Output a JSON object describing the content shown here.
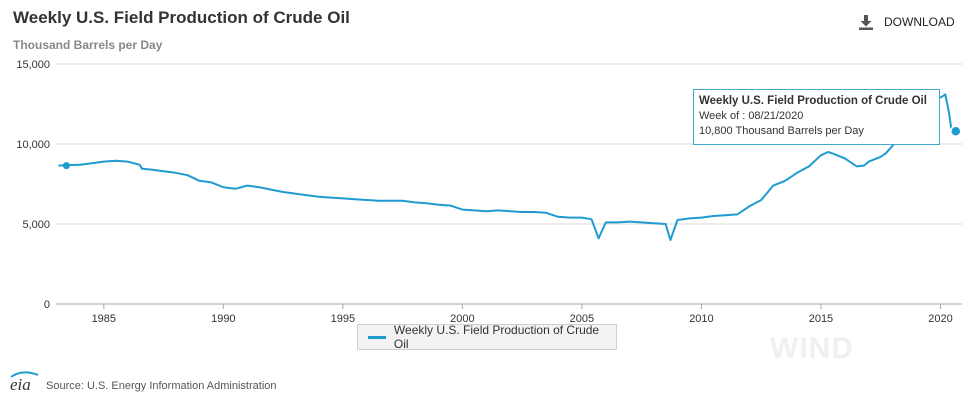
{
  "header": {
    "title": "Weekly U.S. Field Production of Crude Oil",
    "subtitle": "Thousand Barrels per Day",
    "download_label": "DOWNLOAD",
    "download_icon": "download-icon"
  },
  "source": {
    "logo_text": "eia",
    "text": "Source: U.S. Energy Information Administration"
  },
  "watermark": "WIND",
  "tooltip": {
    "title": "Weekly U.S. Field Production of Crude Oil",
    "week_line": "Week of : 08/21/2020",
    "value_line": "10,800 Thousand Barrels per Day"
  },
  "legend": {
    "label": "Weekly U.S. Field Production of Crude Oil"
  },
  "colors": {
    "series": "#1f9bd1",
    "grid": "#d8d8d8",
    "tooltip_border": "#3fa9c9"
  },
  "chart_data": {
    "type": "line",
    "title": "Weekly U.S. Field Production of Crude Oil",
    "ylabel": "Thousand Barrels per Day",
    "ylim": [
      0,
      15000
    ],
    "yticks": [
      0,
      5000,
      10000,
      15000
    ],
    "ytick_labels": [
      "0",
      "5,000",
      "10,000",
      "15,000"
    ],
    "xlim": [
      1983.0,
      2020.9
    ],
    "xticks": [
      1985,
      1990,
      1995,
      2000,
      2005,
      2010,
      2015,
      2020
    ],
    "xtick_labels": [
      "1985",
      "1990",
      "1995",
      "2000",
      "2005",
      "2010",
      "2015",
      "2020"
    ],
    "grid": true,
    "legend_position": "bottom-center",
    "series": [
      {
        "name": "Weekly U.S. Field Production of Crude Oil",
        "x": [
          1983.1,
          1983.5,
          1984.0,
          1984.5,
          1985.0,
          1985.5,
          1986.0,
          1986.5,
          1986.6,
          1987.0,
          1987.5,
          1988.0,
          1988.5,
          1989.0,
          1989.5,
          1990.0,
          1990.5,
          1991.0,
          1991.5,
          1992.0,
          1992.5,
          1993.0,
          1993.5,
          1994.0,
          1994.5,
          1995.0,
          1995.5,
          1996.0,
          1996.5,
          1997.0,
          1997.5,
          1998.0,
          1998.5,
          1999.0,
          1999.5,
          2000.0,
          2000.5,
          2001.0,
          2001.5,
          2002.0,
          2002.5,
          2003.0,
          2003.5,
          2004.0,
          2004.5,
          2005.0,
          2005.4,
          2005.7,
          2006.0,
          2006.5,
          2007.0,
          2007.5,
          2008.0,
          2008.5,
          2008.7,
          2009.0,
          2009.5,
          2010.0,
          2010.5,
          2011.0,
          2011.5,
          2012.0,
          2012.5,
          2013.0,
          2013.5,
          2014.0,
          2014.5,
          2015.0,
          2015.3,
          2015.5,
          2016.0,
          2016.5,
          2016.8,
          2017.0,
          2017.5,
          2017.7,
          2018.0,
          2018.5,
          2019.0,
          2019.5,
          2019.8,
          2020.0,
          2020.2,
          2020.35,
          2020.45,
          2020.64
        ],
        "y": [
          8650,
          8680,
          8700,
          8800,
          8900,
          8950,
          8900,
          8700,
          8450,
          8400,
          8300,
          8200,
          8050,
          7700,
          7600,
          7300,
          7200,
          7400,
          7300,
          7150,
          7000,
          6900,
          6800,
          6700,
          6650,
          6600,
          6550,
          6500,
          6450,
          6450,
          6450,
          6350,
          6300,
          6200,
          6150,
          5900,
          5850,
          5800,
          5850,
          5800,
          5750,
          5750,
          5700,
          5450,
          5400,
          5400,
          5300,
          4100,
          5100,
          5100,
          5150,
          5100,
          5050,
          5000,
          4000,
          5250,
          5350,
          5400,
          5500,
          5550,
          5600,
          6100,
          6500,
          7400,
          7700,
          8200,
          8600,
          9300,
          9500,
          9400,
          9100,
          8600,
          8650,
          8900,
          9200,
          9400,
          9900,
          10900,
          11800,
          12200,
          12800,
          12900,
          13100,
          12000,
          11000,
          10800
        ]
      }
    ],
    "highlight": {
      "x": 2020.64,
      "y": 10800,
      "label": "Week of : 08/21/2020"
    }
  }
}
